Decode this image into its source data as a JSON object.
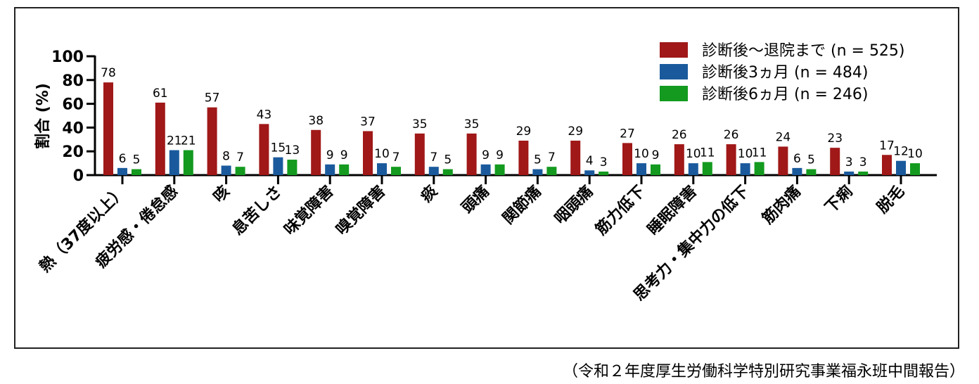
{
  "source_note": "（令和２年度厚生労働科学特別研究事業福永班中間報告）",
  "chart_data": {
    "type": "bar",
    "title": "",
    "xlabel": "",
    "ylabel": "割合 (%)",
    "ylim": [
      0,
      100
    ],
    "yticks": [
      0,
      20,
      40,
      60,
      80,
      100
    ],
    "grid": false,
    "legend_position": "top-right",
    "categories": [
      "熱（37度以上）",
      "疲労感・倦怠感",
      "咳",
      "息苦しさ",
      "味覚障害",
      "嗅覚障害",
      "痰",
      "頭痛",
      "関節痛",
      "咽頭痛",
      "筋力低下",
      "睡眠障害",
      "思考力・集中力の低下",
      "筋肉痛",
      "下痢",
      "脱毛"
    ],
    "series": [
      {
        "name": "診断後〜退院まで (n = 525)",
        "color": "#a01818",
        "values": [
          78,
          61,
          57,
          43,
          38,
          37,
          35,
          35,
          29,
          29,
          27,
          26,
          26,
          24,
          23,
          17
        ]
      },
      {
        "name": "診断後3ヵ月 (n = 484)",
        "color": "#1a5a9c",
        "values": [
          6,
          21,
          8,
          15,
          9,
          10,
          7,
          9,
          5,
          4,
          10,
          10,
          10,
          6,
          3,
          12
        ]
      },
      {
        "name": "診断後6ヵ月 (n = 246)",
        "color": "#139a1f",
        "values": [
          5,
          21,
          7,
          13,
          9,
          7,
          5,
          9,
          7,
          3,
          9,
          11,
          11,
          5,
          3,
          10
        ]
      }
    ]
  }
}
